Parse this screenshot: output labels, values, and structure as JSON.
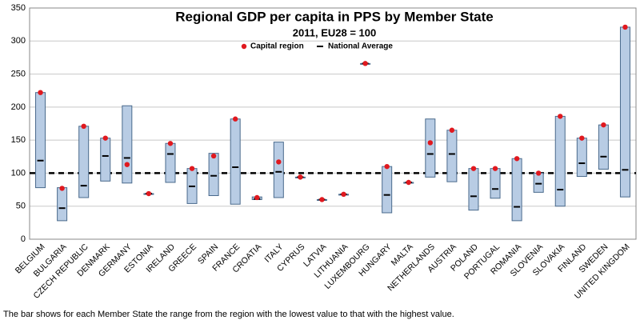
{
  "chart_data": {
    "type": "range-bar",
    "title": "Regional GDP per capita in PPS by Member State",
    "subtitle": "2011, EU28 = 100",
    "note": "The bar shows for each Member State the range from the region with the lowest value to that with the highest value.",
    "categories": [
      "BELGIUM",
      "BULGARIA",
      "CZECH REPUBLIC",
      "DENMARK",
      "GERMANY",
      "ESTONIA",
      "IRELAND",
      "GREECE",
      "SPAIN",
      "FRANCE",
      "CROATIA",
      "ITALY",
      "CYPRUS",
      "LATVIA",
      "LITHUANIA",
      "LUXEMBOURG",
      "HUNGARY",
      "MALTA",
      "NETHERLANDS",
      "AUSTRIA",
      "POLAND",
      "PORTUGAL",
      "ROMANIA",
      "SLOVENIA",
      "SLOVAKIA",
      "FINLAND",
      "SWEDEN",
      "UNITED KINGDOM"
    ],
    "low": [
      78,
      28,
      63,
      88,
      85,
      69,
      86,
      54,
      66,
      53,
      60,
      63,
      94,
      60,
      68,
      266,
      40,
      86,
      94,
      87,
      44,
      62,
      28,
      71,
      50,
      95,
      106,
      64
    ],
    "high": [
      222,
      78,
      171,
      153,
      202,
      69,
      145,
      107,
      130,
      182,
      64,
      147,
      94,
      60,
      68,
      266,
      110,
      86,
      182,
      165,
      107,
      107,
      122,
      100,
      186,
      153,
      173,
      321
    ],
    "bar_color": "#b8cce4",
    "series": [
      {
        "name": "Capital region",
        "color": "#e0191f",
        "values": [
          222,
          77,
          171,
          153,
          113,
          69,
          145,
          107,
          126,
          182,
          63,
          117,
          94,
          60,
          68,
          266,
          110,
          86,
          146,
          165,
          107,
          107,
          122,
          100,
          186,
          153,
          173,
          321
        ]
      },
      {
        "name": "National Average",
        "color": "#000000",
        "values": [
          119,
          47,
          81,
          126,
          123,
          69,
          129,
          80,
          96,
          109,
          61,
          102,
          94,
          60,
          68,
          266,
          67,
          86,
          129,
          129,
          65,
          76,
          49,
          84,
          75,
          115,
          125,
          105
        ]
      }
    ],
    "reference_line": 100,
    "ylim": [
      0,
      350
    ],
    "yticks": [
      0,
      50,
      100,
      150,
      200,
      250,
      300,
      350
    ],
    "grid": true
  }
}
